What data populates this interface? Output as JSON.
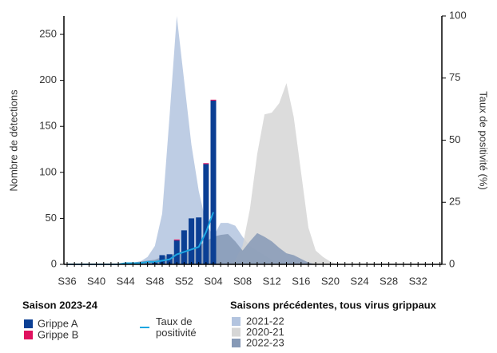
{
  "chart_data": {
    "type": "combo",
    "y_label": "Nombre de détections",
    "y2_label": "Taux de positivité (%)",
    "legend_titles": [
      "Saison 2023-24",
      "Saisons précédentes, tous virus grippaux"
    ],
    "categories": [
      "S36",
      null,
      null,
      null,
      "S40",
      null,
      null,
      null,
      "S44",
      null,
      null,
      null,
      "S48",
      null,
      null,
      null,
      "S52",
      null,
      null,
      null,
      "S04",
      null,
      null,
      null,
      "S08",
      null,
      null,
      null,
      "S12",
      null,
      null,
      null,
      "S16",
      null,
      null,
      null,
      "S20",
      null,
      null,
      null,
      "S24",
      null,
      null,
      null,
      "S28",
      null,
      null,
      null,
      "S32",
      null,
      null,
      null
    ],
    "ylim": [
      0,
      270
    ],
    "yticks": [
      0,
      50,
      100,
      150,
      200,
      250
    ],
    "y2lim": [
      0,
      100
    ],
    "y2ticks": [
      0,
      25,
      50,
      75,
      100
    ],
    "series": [
      {
        "name": "2021-22",
        "type": "area",
        "color": "#b3c4df",
        "values": [
          0,
          0,
          0,
          0,
          0,
          0,
          0,
          0,
          1,
          2,
          3,
          8,
          20,
          55,
          160,
          270,
          200,
          130,
          80,
          45,
          30,
          45,
          45,
          42,
          30,
          20,
          15,
          10,
          5,
          3,
          2,
          1,
          0,
          0,
          0,
          0,
          0,
          0,
          0,
          0,
          0,
          0,
          0,
          0,
          0,
          0,
          0,
          0,
          0,
          0,
          0,
          0
        ]
      },
      {
        "name": "2020-21",
        "type": "area",
        "color": "#d6d6d6",
        "values": [
          0,
          0,
          0,
          0,
          0,
          0,
          0,
          0,
          0,
          0,
          0,
          0,
          0,
          0,
          0,
          0,
          0,
          0,
          0,
          0,
          0,
          0,
          0,
          5,
          20,
          60,
          120,
          163,
          165,
          175,
          197,
          160,
          100,
          40,
          15,
          8,
          3,
          0,
          0,
          0,
          0,
          0,
          0,
          0,
          0,
          0,
          0,
          0,
          0,
          0,
          0,
          0
        ]
      },
      {
        "name": "2022-23",
        "type": "area",
        "color": "#8699b6",
        "values": [
          0,
          0,
          0,
          0,
          0,
          0,
          0,
          0,
          1,
          2,
          3,
          4,
          5,
          8,
          10,
          12,
          15,
          18,
          20,
          25,
          30,
          32,
          33,
          25,
          15,
          25,
          34,
          30,
          25,
          18,
          12,
          10,
          6,
          2,
          0,
          0,
          0,
          0,
          0,
          0,
          0,
          0,
          0,
          0,
          0,
          0,
          0,
          0,
          0,
          0,
          0,
          0
        ]
      },
      {
        "name": "Grippe A",
        "type": "bar",
        "color": "#0b3f94",
        "values": [
          0,
          0,
          0,
          0,
          0,
          0,
          0,
          0,
          0,
          1,
          1,
          1,
          2,
          10,
          11,
          26,
          37,
          50,
          51,
          109,
          178,
          null,
          null,
          null,
          null,
          null,
          null,
          null,
          null,
          null,
          null,
          null,
          null,
          null,
          null,
          null,
          null,
          null,
          null,
          null,
          null,
          null,
          null,
          null,
          null,
          null,
          null,
          null,
          null,
          null,
          null,
          null
        ]
      },
      {
        "name": "Grippe B",
        "type": "bar",
        "color": "#e0115f",
        "values": [
          0,
          0,
          0,
          0,
          0,
          0,
          0,
          0,
          0,
          0,
          0,
          0,
          0,
          0,
          0,
          1,
          0,
          0,
          0,
          1,
          1,
          null,
          null,
          null,
          null,
          null,
          null,
          null,
          null,
          null,
          null,
          null,
          null,
          null,
          null,
          null,
          null,
          null,
          null,
          null,
          null,
          null,
          null,
          null,
          null,
          null,
          null,
          null,
          null,
          null,
          null,
          null
        ]
      },
      {
        "name": "Taux de positivité",
        "type": "line",
        "axis": "y2",
        "color": "#1ea7e1",
        "values": [
          0,
          0,
          0,
          0,
          0,
          0,
          0,
          0,
          0.5,
          0.5,
          0.5,
          1,
          1,
          1.5,
          2,
          4,
          5,
          6,
          7,
          13,
          21,
          null,
          null,
          null,
          null,
          null,
          null,
          null,
          null,
          null,
          null,
          null,
          null,
          null,
          null,
          null,
          null,
          null,
          null,
          null,
          null,
          null,
          null,
          null,
          null,
          null,
          null,
          null,
          null,
          null,
          null,
          null
        ]
      }
    ]
  }
}
